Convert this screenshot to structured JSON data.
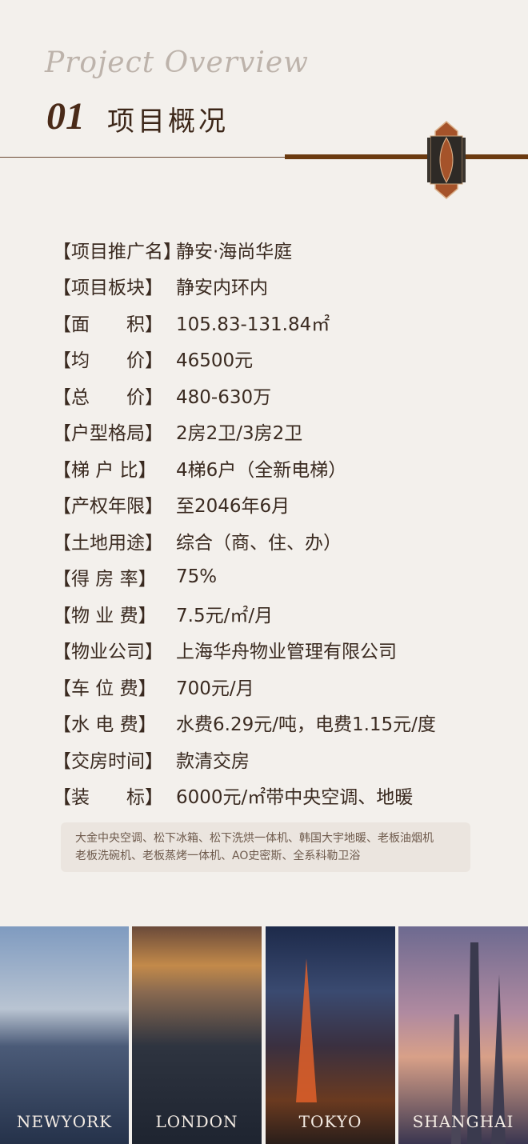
{
  "header": {
    "script_title": "Project Overview",
    "number": "01",
    "title": "项目概况"
  },
  "rows": [
    {
      "label": "【项目推广名】",
      "value": "静安·海尚华庭"
    },
    {
      "label": "【项目板块】",
      "value": "静安内环内"
    },
    {
      "label": "【面　　积】",
      "value": "105.83-131.84㎡"
    },
    {
      "label": "【均　　价】",
      "value": "46500元"
    },
    {
      "label": "【总　　价】",
      "value": "480-630万"
    },
    {
      "label": "【户型格局】",
      "value": "2房2卫/3房2卫"
    },
    {
      "label": "【梯 户 比】",
      "value": "4梯6户（全新电梯）"
    },
    {
      "label": "【产权年限】",
      "value": "至2046年6月"
    },
    {
      "label": "【土地用途】",
      "value": "综合（商、住、办）"
    },
    {
      "label": "【得 房 率】",
      "value": "75%"
    },
    {
      "label": "【物 业 费】",
      "value": "7.5元/㎡/月"
    },
    {
      "label": "【物业公司】",
      "value": "上海华舟物业管理有限公司"
    },
    {
      "label": "【车 位 费】",
      "value": "700元/月"
    },
    {
      "label": "【水 电 费】",
      "value": "水费6.29元/吨，电费1.15元/度"
    },
    {
      "label": "【交房时间】",
      "value": "款清交房"
    },
    {
      "label": "【装　　标】",
      "value": "6000元/㎡带中央空调、地暖"
    }
  ],
  "note": {
    "line1": "大金中央空调、松下冰箱、松下洗烘一体机、韩国大宇地暖、老板油烟机",
    "line2": "老板洗碗机、老板蒸烤一体机、AO史密斯、全系科勒卫浴"
  },
  "cities": [
    "NEWYORK",
    "LONDON",
    "TOKYO",
    "SHANGHAI"
  ],
  "colors": {
    "accent": "#6b3a10",
    "background": "#f3f0ec"
  }
}
